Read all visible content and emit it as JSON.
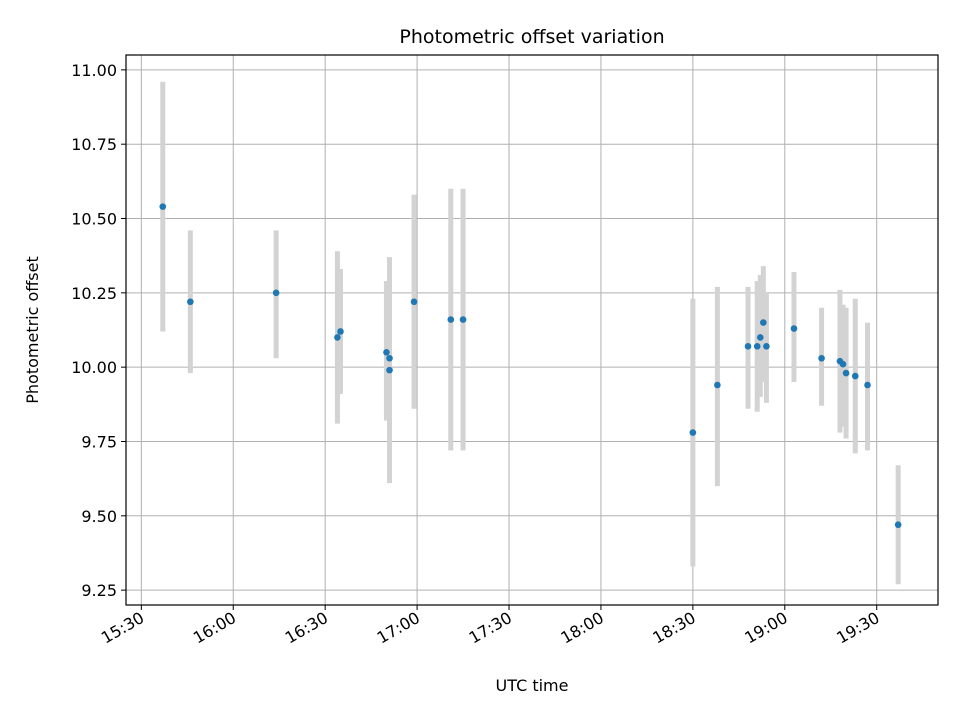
{
  "chart_data": {
    "type": "scatter",
    "title": "Photometric offset variation",
    "xlabel": "UTC time",
    "ylabel": "Photometric offset",
    "x_axis_kind": "time (HH:MM, UTC)",
    "xlim": [
      "15:25",
      "19:50"
    ],
    "ylim": [
      9.2,
      11.05
    ],
    "x_ticks": [
      "15:30",
      "16:00",
      "16:30",
      "17:00",
      "17:30",
      "18:00",
      "18:30",
      "19:00",
      "19:30"
    ],
    "y_ticks": [
      "9.25",
      "9.50",
      "9.75",
      "10.00",
      "10.25",
      "10.50",
      "10.75",
      "11.00"
    ],
    "grid": true,
    "legend": false,
    "marker_color": "#1f77b4",
    "errorbar_color": "#d3d3d3",
    "points": [
      {
        "x": "15:37",
        "y": 10.54,
        "ylow": 10.12,
        "yhigh": 10.96
      },
      {
        "x": "15:46",
        "y": 10.22,
        "ylow": 9.98,
        "yhigh": 10.46
      },
      {
        "x": "16:14",
        "y": 10.25,
        "ylow": 10.03,
        "yhigh": 10.46
      },
      {
        "x": "16:34",
        "y": 10.1,
        "ylow": 9.81,
        "yhigh": 10.39
      },
      {
        "x": "16:35",
        "y": 10.12,
        "ylow": 9.91,
        "yhigh": 10.33
      },
      {
        "x": "16:50",
        "y": 10.05,
        "ylow": 9.82,
        "yhigh": 10.29
      },
      {
        "x": "16:51",
        "y": 10.03,
        "ylow": 9.68,
        "yhigh": 10.37
      },
      {
        "x": "16:51",
        "y": 9.99,
        "ylow": 9.61,
        "yhigh": 10.37
      },
      {
        "x": "16:59",
        "y": 10.22,
        "ylow": 9.86,
        "yhigh": 10.58
      },
      {
        "x": "17:11",
        "y": 10.16,
        "ylow": 9.72,
        "yhigh": 10.6
      },
      {
        "x": "17:15",
        "y": 10.16,
        "ylow": 9.72,
        "yhigh": 10.6
      },
      {
        "x": "18:30",
        "y": 9.78,
        "ylow": 9.33,
        "yhigh": 10.23
      },
      {
        "x": "18:38",
        "y": 9.94,
        "ylow": 9.6,
        "yhigh": 10.27
      },
      {
        "x": "18:48",
        "y": 10.07,
        "ylow": 9.86,
        "yhigh": 10.27
      },
      {
        "x": "18:51",
        "y": 10.07,
        "ylow": 9.85,
        "yhigh": 10.29
      },
      {
        "x": "18:52",
        "y": 10.1,
        "ylow": 9.9,
        "yhigh": 10.31
      },
      {
        "x": "18:53",
        "y": 10.15,
        "ylow": 9.95,
        "yhigh": 10.34
      },
      {
        "x": "18:54",
        "y": 10.07,
        "ylow": 9.88,
        "yhigh": 10.25
      },
      {
        "x": "19:03",
        "y": 10.13,
        "ylow": 9.95,
        "yhigh": 10.32
      },
      {
        "x": "19:12",
        "y": 10.03,
        "ylow": 9.87,
        "yhigh": 10.2
      },
      {
        "x": "19:18",
        "y": 10.02,
        "ylow": 9.78,
        "yhigh": 10.26
      },
      {
        "x": "19:19",
        "y": 10.01,
        "ylow": 9.8,
        "yhigh": 10.21
      },
      {
        "x": "19:20",
        "y": 9.98,
        "ylow": 9.76,
        "yhigh": 10.2
      },
      {
        "x": "19:23",
        "y": 9.97,
        "ylow": 9.71,
        "yhigh": 10.23
      },
      {
        "x": "19:27",
        "y": 9.94,
        "ylow": 9.72,
        "yhigh": 10.15
      },
      {
        "x": "19:37",
        "y": 9.47,
        "ylow": 9.27,
        "yhigh": 9.67
      }
    ]
  }
}
